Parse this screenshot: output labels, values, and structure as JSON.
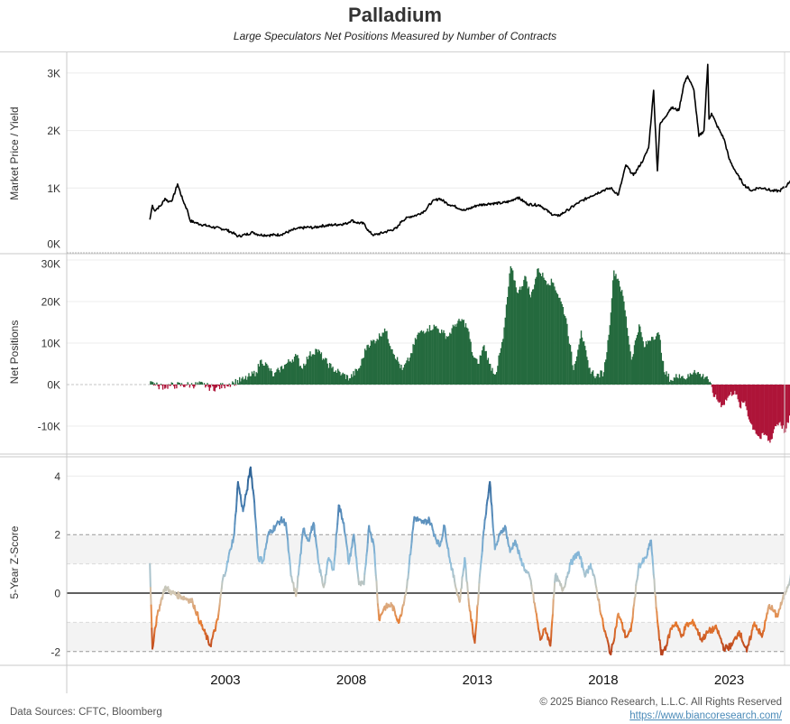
{
  "header": {
    "title": "Palladium",
    "subtitle": "Large Speculators Net Positions Measured by Number of Contracts"
  },
  "footer": {
    "sources": "Data Sources: CFTC, Bloomberg",
    "copyright": "© 2025 Bianco Research, L.L.C. All Rights Reserved",
    "link": "https://www.biancoresearch.com/"
  },
  "colors": {
    "price_line": "#000000",
    "net_positive": "#256a3e",
    "net_negative": "#ae1439",
    "z_high": "#2f6497",
    "z_mid_high": "#8fbfdd",
    "z_mid_low": "#f5ab5a",
    "z_low": "#b8421c",
    "band_fill": "#f3f3f3"
  },
  "chart_data": [
    {
      "type": "line",
      "name": "price",
      "ylabel": "Market Price / Yield",
      "ylim": [
        -100,
        3300
      ],
      "yticks": [
        0,
        1000,
        2000,
        3000
      ],
      "ytick_labels": [
        "0K",
        "1K",
        "2K",
        "3K"
      ],
      "x": [
        2000.0,
        2000.1,
        2000.2,
        2000.3,
        2000.45,
        2000.6,
        2000.75,
        2000.9,
        2001.1,
        2001.3,
        2001.5,
        2001.6,
        2001.8,
        2002.0,
        2002.5,
        2003.0,
        2003.3,
        2003.5,
        2003.8,
        2004.1,
        2004.3,
        2004.7,
        2005.2,
        2005.8,
        2006.3,
        2006.5,
        2006.8,
        2007.3,
        2007.8,
        2008.0,
        2008.2,
        2008.5,
        2008.7,
        2008.9,
        2009.3,
        2009.8,
        2010.0,
        2010.3,
        2010.6,
        2010.9,
        2011.2,
        2011.5,
        2011.8,
        2012.0,
        2012.5,
        2013.0,
        2013.5,
        2014.0,
        2014.3,
        2014.6,
        2015.0,
        2015.5,
        2015.9,
        2016.2,
        2016.6,
        2017.0,
        2017.5,
        2018.0,
        2018.3,
        2018.6,
        2018.9,
        2019.2,
        2019.6,
        2019.8,
        2020.0,
        2020.15,
        2020.25,
        2020.4,
        2020.7,
        2021.0,
        2021.2,
        2021.35,
        2021.6,
        2021.8,
        2022.0,
        2022.15,
        2022.2,
        2022.3,
        2022.5,
        2022.8,
        2023.0,
        2023.3,
        2023.6,
        2023.9,
        2024.1,
        2024.4,
        2024.7,
        2025.0,
        2025.3,
        2025.6,
        2025.8
      ],
      "y": [
        450,
        700,
        600,
        650,
        700,
        820,
        760,
        800,
        1070,
        800,
        600,
        430,
        400,
        370,
        320,
        280,
        220,
        160,
        190,
        230,
        190,
        180,
        190,
        290,
        320,
        310,
        340,
        360,
        380,
        440,
        400,
        380,
        240,
        180,
        230,
        300,
        430,
        500,
        530,
        600,
        760,
        820,
        730,
        700,
        610,
        700,
        730,
        740,
        770,
        840,
        720,
        700,
        560,
        510,
        620,
        740,
        860,
        960,
        1000,
        880,
        1400,
        1220,
        1500,
        1700,
        2700,
        1300,
        2100,
        2200,
        2400,
        2350,
        2800,
        2950,
        2700,
        1900,
        2000,
        3150,
        2200,
        2300,
        2100,
        1850,
        1500,
        1250,
        1050,
        950,
        1000,
        1000,
        950,
        950,
        1050,
        1250,
        1150
      ]
    },
    {
      "type": "area",
      "name": "net_positions",
      "ylabel": "Net Positions",
      "ylim": [
        -16000,
        31500
      ],
      "yticks": [
        -10000,
        0,
        10000,
        20000,
        30000
      ],
      "ytick_labels": [
        "-10K",
        "0K",
        "10K",
        "20K",
        "30K"
      ],
      "x": [
        2000.0,
        2000.1,
        2000.2,
        2000.3,
        2000.8,
        2001.0,
        2001.4,
        2001.6,
        2002.1,
        2002.3,
        2002.6,
        2002.9,
        2003.0,
        2003.3,
        2003.7,
        2003.95,
        2004.2,
        2004.4,
        2004.7,
        2004.9,
        2005.1,
        2005.4,
        2005.8,
        2006.0,
        2006.3,
        2006.6,
        2006.9,
        2007.2,
        2007.6,
        2007.9,
        2008.3,
        2008.6,
        2009.0,
        2009.3,
        2009.6,
        2010.0,
        2010.3,
        2010.6,
        2011.0,
        2011.3,
        2011.6,
        2011.8,
        2012.1,
        2012.4,
        2012.6,
        2012.8,
        2013.0,
        2013.25,
        2013.45,
        2013.7,
        2014.0,
        2014.3,
        2014.6,
        2014.9,
        2015.1,
        2015.4,
        2015.7,
        2016.0,
        2016.3,
        2016.5,
        2016.8,
        2017.1,
        2017.4,
        2017.7,
        2018.0,
        2018.2,
        2018.4,
        2018.6,
        2018.8,
        2019.1,
        2019.4,
        2019.6,
        2019.9,
        2020.2,
        2020.4,
        2020.7,
        2021.0,
        2021.3,
        2021.6,
        2021.9,
        2022.1,
        2022.4,
        2022.7,
        2023.0,
        2023.2,
        2023.4,
        2023.6,
        2023.8,
        2024.0,
        2024.2,
        2024.4,
        2024.6,
        2024.8,
        2025.0,
        2025.2,
        2025.5,
        2025.7,
        2025.9
      ],
      "y": [
        800,
        600,
        -200,
        -400,
        -300,
        -200,
        -100,
        -100,
        0,
        -600,
        -800,
        -300,
        0,
        500,
        1200,
        2000,
        3000,
        6000,
        4000,
        2000,
        3500,
        5000,
        7000,
        4000,
        7000,
        8500,
        6000,
        4000,
        2500,
        1500,
        4000,
        9500,
        11000,
        13500,
        8500,
        3500,
        6500,
        12000,
        13500,
        14000,
        12500,
        11500,
        14500,
        15500,
        13500,
        7000,
        5000,
        9500,
        5000,
        2500,
        11000,
        28500,
        22000,
        26000,
        21000,
        28000,
        25000,
        24500,
        20000,
        16000,
        3500,
        13000,
        4000,
        2000,
        3000,
        12000,
        27500,
        25000,
        20000,
        6000,
        14500,
        9000,
        11500,
        12000,
        3000,
        1000,
        2500,
        1500,
        3500,
        2000,
        2000,
        -3000,
        -5000,
        -2500,
        -1500,
        -5500,
        -4000,
        -9000,
        -11000,
        -13000,
        -12000,
        -14000,
        -10000,
        -9000,
        -11500,
        -6000,
        -4500,
        -3500
      ]
    },
    {
      "type": "line",
      "name": "zscore",
      "ylabel": "5-Year Z-Score",
      "ylim": [
        -2.5,
        4.6
      ],
      "yticks": [
        -2,
        0,
        2,
        4
      ],
      "ytick_labels": [
        "-2",
        "0",
        "2",
        "4"
      ],
      "bands": [
        [
          -2,
          -1
        ],
        [
          1,
          2
        ]
      ],
      "x": [
        2000.0,
        2000.1,
        2000.2,
        2000.4,
        2000.6,
        2000.9,
        2001.2,
        2001.5,
        2001.7,
        2002.0,
        2002.4,
        2002.7,
        2002.9,
        2003.05,
        2003.2,
        2003.35,
        2003.5,
        2003.7,
        2003.85,
        2004.0,
        2004.15,
        2004.3,
        2004.5,
        2004.7,
        2005.0,
        2005.2,
        2005.4,
        2005.6,
        2005.8,
        2006.1,
        2006.3,
        2006.5,
        2006.7,
        2006.9,
        2007.1,
        2007.3,
        2007.5,
        2007.7,
        2007.9,
        2008.1,
        2008.3,
        2008.5,
        2008.7,
        2008.9,
        2009.1,
        2009.3,
        2009.6,
        2009.9,
        2010.2,
        2010.5,
        2010.8,
        2011.1,
        2011.3,
        2011.5,
        2011.7,
        2011.9,
        2012.1,
        2012.3,
        2012.5,
        2012.7,
        2012.9,
        2013.1,
        2013.3,
        2013.5,
        2013.7,
        2013.9,
        2014.1,
        2014.3,
        2014.5,
        2014.7,
        2014.9,
        2015.1,
        2015.3,
        2015.5,
        2015.7,
        2015.9,
        2016.1,
        2016.4,
        2016.7,
        2017.0,
        2017.3,
        2017.5,
        2017.7,
        2018.0,
        2018.3,
        2018.6,
        2018.9,
        2019.1,
        2019.4,
        2019.7,
        2019.9,
        2020.1,
        2020.3,
        2020.5,
        2020.7,
        2020.9,
        2021.1,
        2021.3,
        2021.6,
        2021.9,
        2022.2,
        2022.5,
        2022.8,
        2023.1,
        2023.4,
        2023.7,
        2024.0,
        2024.3,
        2024.6,
        2024.9,
        2025.1,
        2025.3,
        2025.5,
        2025.7,
        2025.9
      ],
      "y": [
        1.0,
        -1.9,
        -1.2,
        -0.4,
        0.2,
        0.0,
        -0.1,
        -0.2,
        -0.3,
        -1.0,
        -1.8,
        -0.9,
        0.5,
        0.9,
        1.5,
        2.0,
        3.8,
        2.8,
        3.5,
        4.3,
        3.1,
        1.2,
        1.1,
        2.0,
        2.3,
        2.5,
        2.4,
        0.6,
        -0.1,
        2.2,
        1.8,
        2.4,
        1.0,
        0.2,
        1.2,
        0.8,
        3.0,
        2.4,
        1.0,
        2.0,
        0.3,
        0.3,
        2.3,
        1.6,
        -0.9,
        -0.5,
        -0.4,
        -1.0,
        0.2,
        2.6,
        2.4,
        2.5,
        2.0,
        1.6,
        2.3,
        1.2,
        0.4,
        -0.3,
        1.2,
        -0.6,
        -1.7,
        0.6,
        2.5,
        3.8,
        1.5,
        2.0,
        2.3,
        1.4,
        1.8,
        1.2,
        0.8,
        0.5,
        -0.5,
        -1.6,
        -1.2,
        -1.8,
        0.6,
        0.1,
        1.0,
        1.4,
        0.6,
        1.0,
        0.3,
        -1.1,
        -2.1,
        -0.7,
        -1.5,
        -1.3,
        0.9,
        1.2,
        1.8,
        -0.5,
        -2.1,
        -1.8,
        -1.2,
        -1.0,
        -1.5,
        -1.1,
        -1.0,
        -1.6,
        -1.3,
        -1.2,
        -1.9,
        -1.8,
        -1.3,
        -2.0,
        -1.0,
        -1.5,
        -0.4,
        -0.8,
        -0.3,
        0.2,
        0.7,
        0.4,
        0.5
      ]
    }
  ],
  "x_axis": {
    "ticks": [
      2003,
      2008,
      2013,
      2018,
      2023
    ],
    "tick_labels": [
      "2003",
      "2008",
      "2013",
      "2018",
      "2023"
    ],
    "xlim": [
      1996.7,
      2025.2
    ]
  }
}
